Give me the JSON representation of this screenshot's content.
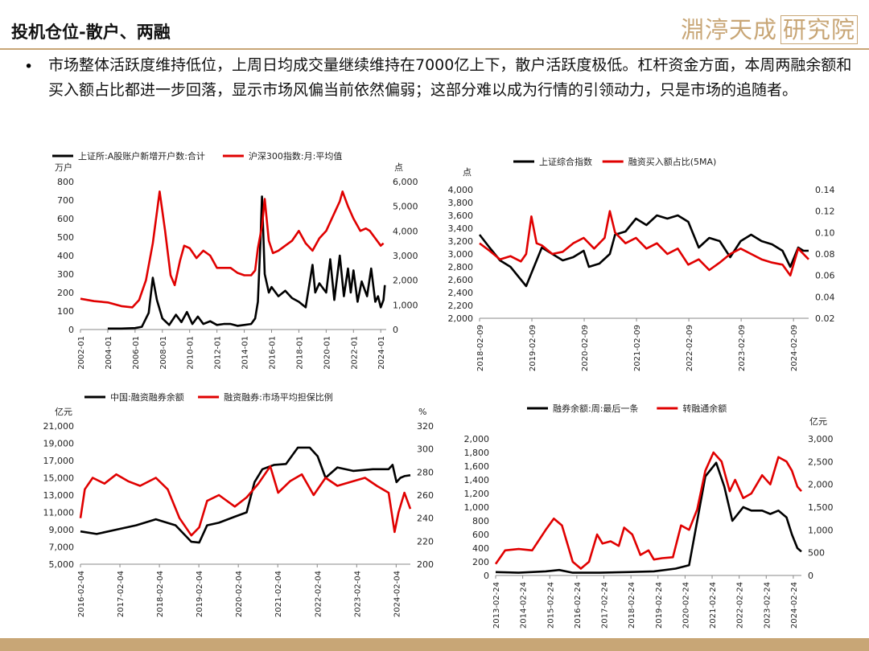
{
  "header": {
    "title": "投机仓位-散户、两融",
    "logo_part1": "淵渟天成",
    "logo_part2": "研究院",
    "colors": {
      "accent": "#c8a676"
    }
  },
  "body": {
    "bullet": "•",
    "text": "市场整体活跃度维持低位，上周日均成交量继续维持在7000亿上下，散户活跃度极低。杠杆资金方面，本周两融余额和买入额占比都进一步回落，显示市场风偏当前依然偏弱；这部分难以成为行情的引领动力，只是市场的追随者。"
  },
  "chart_data": [
    {
      "id": "c1",
      "type": "line",
      "left_unit": "万户",
      "right_unit": "点",
      "yleft": {
        "min": 0,
        "max": 800,
        "ticks": [
          0,
          100,
          200,
          300,
          400,
          500,
          600,
          700,
          800
        ],
        "labels": [
          "0",
          "100",
          "200",
          "300",
          "400",
          "500",
          "600",
          "700",
          "800"
        ]
      },
      "yright": {
        "min": 0,
        "max": 6000,
        "ticks": [
          0,
          1000,
          2000,
          3000,
          4000,
          5000,
          6000
        ],
        "labels": [
          "0",
          "1,000",
          "2,000",
          "3,000",
          "4,000",
          "5,000",
          "6,000"
        ]
      },
      "xrange": [
        2002.0,
        2024.4
      ],
      "xticks": [
        2002,
        2004,
        2006,
        2008,
        2010,
        2012,
        2014,
        2016,
        2018,
        2020,
        2022,
        2024
      ],
      "xlabels": [
        "2002-01",
        "2004-01",
        "2006-01",
        "2008-01",
        "2010-01",
        "2012-01",
        "2014-01",
        "2016-01",
        "2018-01",
        "2020-01",
        "2022-01",
        "2024-01"
      ],
      "series": [
        {
          "name": "上证所:A股账户新增开户数:合计",
          "axis": "left",
          "color": "#000000",
          "x": [
            2004.0,
            2005.0,
            2006.0,
            2006.5,
            2007.0,
            2007.3,
            2007.6,
            2008.0,
            2008.5,
            2009.0,
            2009.4,
            2009.8,
            2010.2,
            2010.6,
            2011.0,
            2011.5,
            2012.0,
            2012.5,
            2013.0,
            2013.5,
            2014.0,
            2014.5,
            2014.8,
            2015.0,
            2015.2,
            2015.3,
            2015.5,
            2015.8,
            2016.0,
            2016.5,
            2017.0,
            2017.5,
            2018.0,
            2018.5,
            2019.0,
            2019.2,
            2019.5,
            2020.0,
            2020.3,
            2020.6,
            2021.0,
            2021.3,
            2021.6,
            2021.8,
            2022.0,
            2022.3,
            2022.6,
            2023.0,
            2023.3,
            2023.6,
            2023.8,
            2024.0,
            2024.2,
            2024.3
          ],
          "y": [
            5,
            5,
            8,
            15,
            90,
            280,
            160,
            60,
            25,
            80,
            40,
            95,
            30,
            70,
            30,
            45,
            25,
            30,
            30,
            20,
            25,
            30,
            60,
            150,
            500,
            720,
            300,
            200,
            230,
            180,
            210,
            170,
            150,
            120,
            350,
            200,
            250,
            200,
            380,
            160,
            400,
            180,
            330,
            200,
            320,
            150,
            260,
            180,
            330,
            150,
            180,
            120,
            160,
            240
          ]
        },
        {
          "name": "沪深300指数:月:平均值",
          "axis": "right",
          "color": "#e00000",
          "x": [
            2002.0,
            2003.0,
            2004.0,
            2005.0,
            2005.8,
            2006.3,
            2006.8,
            2007.3,
            2007.8,
            2008.2,
            2008.6,
            2008.9,
            2009.3,
            2009.6,
            2010.0,
            2010.5,
            2011.0,
            2011.5,
            2012.0,
            2012.5,
            2013.0,
            2013.5,
            2014.0,
            2014.5,
            2014.8,
            2015.0,
            2015.3,
            2015.5,
            2015.8,
            2016.1,
            2016.5,
            2017.0,
            2017.5,
            2018.0,
            2018.5,
            2019.0,
            2019.5,
            2020.0,
            2020.5,
            2021.0,
            2021.2,
            2021.6,
            2022.0,
            2022.5,
            2022.9,
            2023.2,
            2023.6,
            2024.0,
            2024.2
          ],
          "y": [
            1250,
            1150,
            1100,
            950,
            900,
            1200,
            2000,
            3500,
            5600,
            4000,
            2200,
            1800,
            2800,
            3400,
            3300,
            2900,
            3200,
            3000,
            2500,
            2500,
            2500,
            2300,
            2200,
            2200,
            2400,
            3300,
            4200,
            5300,
            3600,
            3100,
            3200,
            3400,
            3600,
            4000,
            3500,
            3200,
            3700,
            4000,
            4600,
            5200,
            5600,
            5000,
            4500,
            4000,
            4100,
            4000,
            3700,
            3400,
            3500
          ]
        }
      ]
    },
    {
      "id": "c2",
      "type": "line",
      "left_unit": "点",
      "right_unit": "",
      "yleft": {
        "min": 2000,
        "max": 4000,
        "ticks": [
          2000,
          2200,
          2400,
          2600,
          2800,
          3000,
          3200,
          3400,
          3600,
          3800,
          4000
        ],
        "labels": [
          "2,000",
          "2,200",
          "2,400",
          "2,600",
          "2,800",
          "3,000",
          "3,200",
          "3,400",
          "3,600",
          "3,800",
          "4,000"
        ]
      },
      "yright": {
        "min": 0.02,
        "max": 0.14,
        "ticks": [
          0.02,
          0.04,
          0.06,
          0.08,
          0.1,
          0.12,
          0.14
        ],
        "labels": [
          "0.02",
          "0.04",
          "0.06",
          "0.08",
          "0.10",
          "0.12",
          "0.14"
        ]
      },
      "xrange": [
        2018.11,
        2024.4
      ],
      "xticks": [
        2018.11,
        2019.11,
        2020.11,
        2021.11,
        2022.11,
        2023.11,
        2024.11
      ],
      "xlabels": [
        "2018-02-09",
        "2019-02-09",
        "2020-02-09",
        "2021-02-09",
        "2022-02-09",
        "2023-02-09",
        "2024-02-09"
      ],
      "series": [
        {
          "name": "上证综合指数",
          "axis": "left",
          "color": "#000000",
          "x": [
            2018.11,
            2018.3,
            2018.5,
            2018.7,
            2018.9,
            2019.0,
            2019.1,
            2019.3,
            2019.5,
            2019.7,
            2019.9,
            2020.1,
            2020.2,
            2020.4,
            2020.6,
            2020.7,
            2020.9,
            2021.1,
            2021.3,
            2021.5,
            2021.7,
            2021.9,
            2022.1,
            2022.3,
            2022.5,
            2022.7,
            2022.9,
            2023.1,
            2023.3,
            2023.5,
            2023.7,
            2023.9,
            2024.05,
            2024.2,
            2024.3,
            2024.4
          ],
          "y": [
            3300,
            3100,
            2900,
            2800,
            2600,
            2500,
            2700,
            3100,
            3000,
            2900,
            2950,
            3050,
            2800,
            2850,
            3000,
            3300,
            3350,
            3550,
            3450,
            3600,
            3550,
            3600,
            3500,
            3100,
            3250,
            3200,
            2950,
            3200,
            3300,
            3200,
            3150,
            3050,
            2800,
            3100,
            3050,
            3050
          ]
        },
        {
          "name": "融资买入额占比(5MA)",
          "axis": "right",
          "color": "#e00000",
          "x": [
            2018.11,
            2018.3,
            2018.5,
            2018.7,
            2018.9,
            2019.0,
            2019.1,
            2019.2,
            2019.3,
            2019.5,
            2019.7,
            2019.9,
            2020.1,
            2020.3,
            2020.5,
            2020.6,
            2020.7,
            2020.9,
            2021.1,
            2021.3,
            2021.5,
            2021.7,
            2021.9,
            2022.1,
            2022.3,
            2022.5,
            2022.7,
            2022.9,
            2023.1,
            2023.3,
            2023.5,
            2023.7,
            2023.9,
            2024.05,
            2024.2,
            2024.3,
            2024.4
          ],
          "y": [
            0.09,
            0.083,
            0.075,
            0.078,
            0.073,
            0.08,
            0.115,
            0.09,
            0.088,
            0.08,
            0.082,
            0.09,
            0.095,
            0.085,
            0.095,
            0.12,
            0.1,
            0.09,
            0.095,
            0.085,
            0.09,
            0.08,
            0.085,
            0.07,
            0.075,
            0.065,
            0.072,
            0.08,
            0.085,
            0.08,
            0.075,
            0.072,
            0.07,
            0.06,
            0.085,
            0.08,
            0.075
          ]
        }
      ]
    },
    {
      "id": "c3",
      "type": "line",
      "left_unit": "亿元",
      "right_unit": "%",
      "yleft": {
        "min": 5000,
        "max": 21000,
        "ticks": [
          5000,
          7000,
          9000,
          11000,
          13000,
          15000,
          17000,
          19000,
          21000
        ],
        "labels": [
          "5,000",
          "7,000",
          "9,000",
          "11,000",
          "13,000",
          "15,000",
          "17,000",
          "19,000",
          "21,000"
        ]
      },
      "yright": {
        "min": 200,
        "max": 320,
        "ticks": [
          200,
          220,
          240,
          260,
          280,
          300,
          320
        ],
        "labels": [
          "200",
          "220",
          "240",
          "260",
          "280",
          "300",
          "320"
        ]
      },
      "xrange": [
        2016.09,
        2024.45
      ],
      "xticks": [
        2016.09,
        2017.09,
        2018.09,
        2019.09,
        2020.09,
        2021.09,
        2022.09,
        2023.09,
        2024.09
      ],
      "xlabels": [
        "2016-02-04",
        "2017-02-04",
        "2018-02-04",
        "2019-02-04",
        "2020-02-04",
        "2021-02-04",
        "2022-02-04",
        "2023-02-04",
        "2024-02-04"
      ],
      "series": [
        {
          "name": "中国:融资融券余额",
          "axis": "left",
          "color": "#000000",
          "x": [
            2016.09,
            2016.5,
            2017.0,
            2017.5,
            2018.0,
            2018.5,
            2018.9,
            2019.1,
            2019.3,
            2019.6,
            2020.0,
            2020.3,
            2020.5,
            2020.7,
            2021.0,
            2021.3,
            2021.6,
            2021.9,
            2022.1,
            2022.3,
            2022.6,
            2023.0,
            2023.5,
            2023.9,
            2024.0,
            2024.1,
            2024.2,
            2024.3,
            2024.45
          ],
          "y": [
            8800,
            8500,
            9000,
            9500,
            10200,
            9500,
            7600,
            7500,
            9500,
            9800,
            10500,
            11000,
            14500,
            16000,
            16500,
            16600,
            18500,
            18500,
            17500,
            15000,
            16200,
            15800,
            16000,
            16000,
            16500,
            14500,
            15000,
            15200,
            15300
          ]
        },
        {
          "name": "融资融券:市场平均担保比例",
          "axis": "right",
          "color": "#e00000",
          "x": [
            2016.09,
            2016.2,
            2016.4,
            2016.7,
            2017.0,
            2017.3,
            2017.6,
            2018.0,
            2018.3,
            2018.6,
            2018.9,
            2019.1,
            2019.3,
            2019.6,
            2020.0,
            2020.3,
            2020.6,
            2020.9,
            2021.1,
            2021.4,
            2021.7,
            2022.0,
            2022.3,
            2022.6,
            2023.0,
            2023.3,
            2023.6,
            2023.9,
            2024.05,
            2024.15,
            2024.3,
            2024.45
          ],
          "y": [
            240,
            265,
            275,
            270,
            278,
            272,
            268,
            275,
            265,
            240,
            225,
            232,
            255,
            260,
            250,
            258,
            270,
            285,
            262,
            272,
            278,
            260,
            275,
            268,
            272,
            275,
            268,
            262,
            228,
            245,
            262,
            248
          ]
        }
      ]
    },
    {
      "id": "c4",
      "type": "line",
      "left_unit": "",
      "right_unit": "亿元",
      "yleft": {
        "min": 0,
        "max": 2000,
        "ticks": [
          0,
          200,
          400,
          600,
          800,
          1000,
          1200,
          1400,
          1600,
          1800,
          2000
        ],
        "labels": [
          "0",
          "200",
          "400",
          "600",
          "800",
          "1,000",
          "1,200",
          "1,400",
          "1,600",
          "1,800",
          "2,000"
        ]
      },
      "yright": {
        "min": 0,
        "max": 3000,
        "ticks": [
          0,
          500,
          1000,
          1500,
          2000,
          2500,
          3000
        ],
        "labels": [
          "0",
          "500",
          "1,000",
          "1,500",
          "2,000",
          "2,500",
          "3,000"
        ]
      },
      "xrange": [
        2013.15,
        2024.45
      ],
      "xticks": [
        2013.15,
        2014.15,
        2015.15,
        2016.15,
        2017.15,
        2018.15,
        2019.15,
        2020.15,
        2021.15,
        2022.15,
        2023.15,
        2024.15
      ],
      "xlabels": [
        "2013-02-24",
        "2014-02-24",
        "2015-02-24",
        "2016-02-24",
        "2017-02-24",
        "2018-02-24",
        "2019-02-24",
        "2020-02-24",
        "2021-02-24",
        "2022-02-24",
        "2023-02-24",
        "2024-02-24"
      ],
      "series": [
        {
          "name": "融券余额:周:最后一条",
          "axis": "left",
          "color": "#000000",
          "x": [
            2013.15,
            2014.0,
            2015.0,
            2015.5,
            2016.0,
            2017.0,
            2018.0,
            2019.0,
            2019.8,
            2020.3,
            2020.6,
            2020.9,
            2021.1,
            2021.3,
            2021.6,
            2021.9,
            2022.1,
            2022.3,
            2022.6,
            2023.0,
            2023.3,
            2023.6,
            2023.9,
            2024.1,
            2024.3,
            2024.45
          ],
          "y": [
            50,
            40,
            60,
            80,
            40,
            40,
            50,
            60,
            100,
            150,
            800,
            1450,
            1550,
            1650,
            1300,
            800,
            900,
            1000,
            950,
            950,
            900,
            950,
            850,
            600,
            400,
            350
          ]
        },
        {
          "name": "转融通余额",
          "axis": "right",
          "color": "#e00000",
          "x": [
            2013.15,
            2013.5,
            2014.0,
            2014.5,
            2015.0,
            2015.3,
            2015.6,
            2016.0,
            2016.3,
            2016.6,
            2016.9,
            2017.1,
            2017.4,
            2017.7,
            2017.9,
            2018.2,
            2018.5,
            2018.8,
            2019.0,
            2019.3,
            2019.7,
            2020.0,
            2020.3,
            2020.6,
            2020.9,
            2021.2,
            2021.5,
            2021.8,
            2022.0,
            2022.3,
            2022.6,
            2023.0,
            2023.3,
            2023.6,
            2023.9,
            2024.1,
            2024.3,
            2024.45
          ],
          "y": [
            250,
            550,
            580,
            550,
            1000,
            1250,
            1100,
            300,
            150,
            300,
            900,
            700,
            750,
            650,
            1050,
            900,
            450,
            550,
            350,
            380,
            400,
            1100,
            1000,
            1450,
            2300,
            2700,
            2500,
            1850,
            2100,
            1700,
            1800,
            2200,
            2000,
            2600,
            2500,
            2300,
            1950,
            1850
          ]
        }
      ]
    }
  ]
}
